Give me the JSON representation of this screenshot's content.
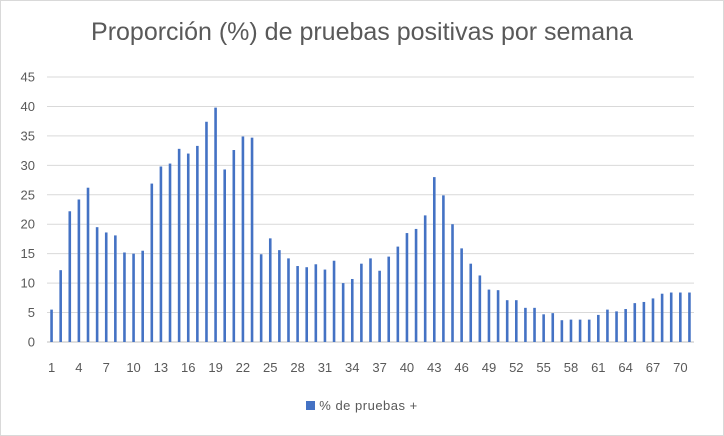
{
  "chart_data": {
    "type": "bar",
    "title": "Proporción (%) de pruebas positivas por semana",
    "xlabel": "",
    "ylabel": "",
    "ylim": [
      0,
      45
    ],
    "yticks": [
      0,
      5,
      10,
      15,
      20,
      25,
      30,
      35,
      40,
      45
    ],
    "xtick_labels": [
      "1",
      "4",
      "7",
      "10",
      "13",
      "16",
      "19",
      "22",
      "25",
      "28",
      "31",
      "34",
      "37",
      "40",
      "43",
      "46",
      "49",
      "52",
      "55",
      "58",
      "61",
      "64",
      "67",
      "70"
    ],
    "categories": [
      "1",
      "2",
      "3",
      "4",
      "5",
      "6",
      "7",
      "8",
      "9",
      "10",
      "11",
      "12",
      "13",
      "14",
      "15",
      "16",
      "17",
      "18",
      "19",
      "20",
      "21",
      "22",
      "23",
      "24",
      "25",
      "26",
      "27",
      "28",
      "29",
      "30",
      "31",
      "32",
      "33",
      "34",
      "35",
      "36",
      "37",
      "38",
      "39",
      "40",
      "41",
      "42",
      "43",
      "44",
      "45",
      "46",
      "47",
      "48",
      "49",
      "50",
      "51",
      "52",
      "53",
      "54",
      "55",
      "56",
      "57",
      "58",
      "59",
      "60",
      "61",
      "62",
      "63",
      "64",
      "65",
      "66",
      "67",
      "68",
      "69",
      "70",
      "71"
    ],
    "series": [
      {
        "name": "% de pruebas +",
        "color": "#4472c4",
        "values": [
          5.5,
          12.2,
          22.2,
          24.2,
          26.2,
          19.5,
          18.6,
          18.1,
          15.2,
          15.0,
          15.5,
          26.9,
          29.8,
          30.3,
          32.8,
          32.0,
          33.3,
          37.4,
          39.8,
          29.3,
          32.6,
          34.9,
          34.7,
          14.9,
          17.6,
          15.6,
          14.2,
          12.9,
          12.7,
          13.2,
          12.3,
          13.8,
          10.0,
          10.7,
          13.3,
          14.2,
          12.1,
          14.5,
          16.2,
          18.5,
          19.2,
          21.5,
          28.0,
          24.9,
          20.0,
          15.9,
          13.3,
          11.3,
          8.9,
          8.8,
          7.1,
          7.1,
          5.8,
          5.8,
          4.7,
          4.9,
          3.7,
          3.8,
          3.8,
          3.8,
          4.6,
          5.5,
          5.2,
          5.6,
          6.6,
          6.8,
          7.4,
          8.2,
          8.4,
          8.4,
          8.4
        ]
      }
    ],
    "grid": true,
    "legend_position": "bottom"
  }
}
